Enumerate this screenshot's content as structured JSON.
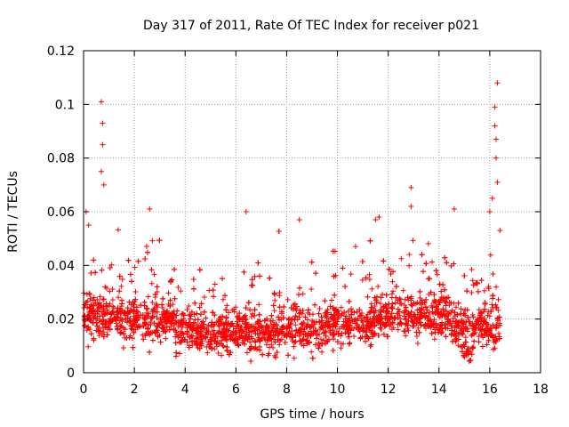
{
  "chart_data": {
    "type": "scatter",
    "title": "Day 317 of 2011, Rate Of TEC Index for receiver p021",
    "xlabel": "GPS time / hours",
    "ylabel": "ROTI / TECUs",
    "xlim": [
      0,
      18
    ],
    "ylim": [
      0,
      0.12
    ],
    "xticks": [
      0,
      2,
      4,
      6,
      8,
      10,
      12,
      14,
      16,
      18
    ],
    "yticks": [
      0,
      0.02,
      0.04,
      0.06,
      0.08,
      0.1,
      0.12
    ],
    "xtick_labels": [
      "0",
      "2",
      "4",
      "6",
      "8",
      "10",
      "12",
      "14",
      "16",
      "18"
    ],
    "ytick_labels": [
      "0",
      "0.02",
      "0.04",
      "0.06",
      "0.08",
      "0.1",
      "0.12"
    ],
    "grid": true,
    "legend": "none",
    "marker": "plus",
    "color": "#ff0000",
    "x_data_range": [
      0,
      16.4
    ],
    "highlighted_peaks": [
      {
        "x": 0.7,
        "y": 0.101
      },
      {
        "x": 0.75,
        "y": 0.093
      },
      {
        "x": 0.75,
        "y": 0.085
      },
      {
        "x": 0.7,
        "y": 0.075
      },
      {
        "x": 0.8,
        "y": 0.07
      },
      {
        "x": 0.1,
        "y": 0.06
      },
      {
        "x": 0.2,
        "y": 0.055
      },
      {
        "x": 2.6,
        "y": 0.061
      },
      {
        "x": 6.4,
        "y": 0.06
      },
      {
        "x": 8.5,
        "y": 0.057
      },
      {
        "x": 11.5,
        "y": 0.057
      },
      {
        "x": 12.9,
        "y": 0.069
      },
      {
        "x": 12.9,
        "y": 0.062
      },
      {
        "x": 14.6,
        "y": 0.061
      },
      {
        "x": 16.3,
        "y": 0.108
      },
      {
        "x": 16.2,
        "y": 0.099
      },
      {
        "x": 16.2,
        "y": 0.092
      },
      {
        "x": 16.25,
        "y": 0.087
      },
      {
        "x": 16.25,
        "y": 0.08
      },
      {
        "x": 16.3,
        "y": 0.071
      },
      {
        "x": 16.1,
        "y": 0.065
      },
      {
        "x": 16.0,
        "y": 0.06
      },
      {
        "x": 16.4,
        "y": 0.053
      }
    ]
  }
}
